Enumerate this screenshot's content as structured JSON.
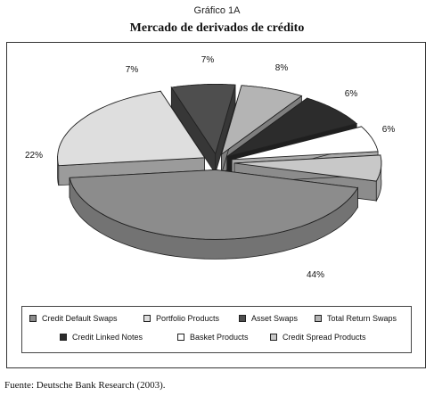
{
  "figure_label": "Gráfico 1A",
  "source": "Fuente: Deutsche Bank Research (2003).",
  "colors": {
    "credit_default_swaps": "#8c8c8c",
    "portfolio_products": "#dedede",
    "asset_swaps": "#4e4e4e",
    "total_return_swaps": "#b4b4b4",
    "credit_linked_notes": "#2c2c2c",
    "basket_products": "#ffffff",
    "credit_spread_products": "#c8c8c8"
  },
  "chart_data": {
    "type": "pie",
    "style": "3d-exploded",
    "title": "Mercado de derivados de crédito",
    "legend_position": "bottom",
    "slices": [
      {
        "label": "Credit Default Swaps",
        "value": 44,
        "value_label": "44%"
      },
      {
        "label": "Portfolio Products",
        "value": 22,
        "value_label": "22%"
      },
      {
        "label": "Asset Swaps",
        "value": 7,
        "value_label": "7%"
      },
      {
        "label": "Total Return Swaps",
        "value": 7,
        "value_label": "7%"
      },
      {
        "label": "Credit Linked Notes",
        "value": 8,
        "value_label": "8%"
      },
      {
        "label": "Basket Products",
        "value": 6,
        "value_label": "6%"
      },
      {
        "label": "Credit Spread Products",
        "value": 6,
        "value_label": "6%"
      }
    ]
  },
  "legend": {
    "items": [
      {
        "label": "Credit Default Swaps",
        "color": "#8c8c8c"
      },
      {
        "label": "Portfolio Products",
        "color": "#dedede"
      },
      {
        "label": "Asset Swaps",
        "color": "#4e4e4e"
      },
      {
        "label": "Total Return Swaps",
        "color": "#b4b4b4"
      },
      {
        "label": "Credit Linked Notes",
        "color": "#2c2c2c"
      },
      {
        "label": "Basket Products",
        "color": "#ffffff"
      },
      {
        "label": "Credit Spread Products",
        "color": "#c8c8c8"
      }
    ]
  }
}
